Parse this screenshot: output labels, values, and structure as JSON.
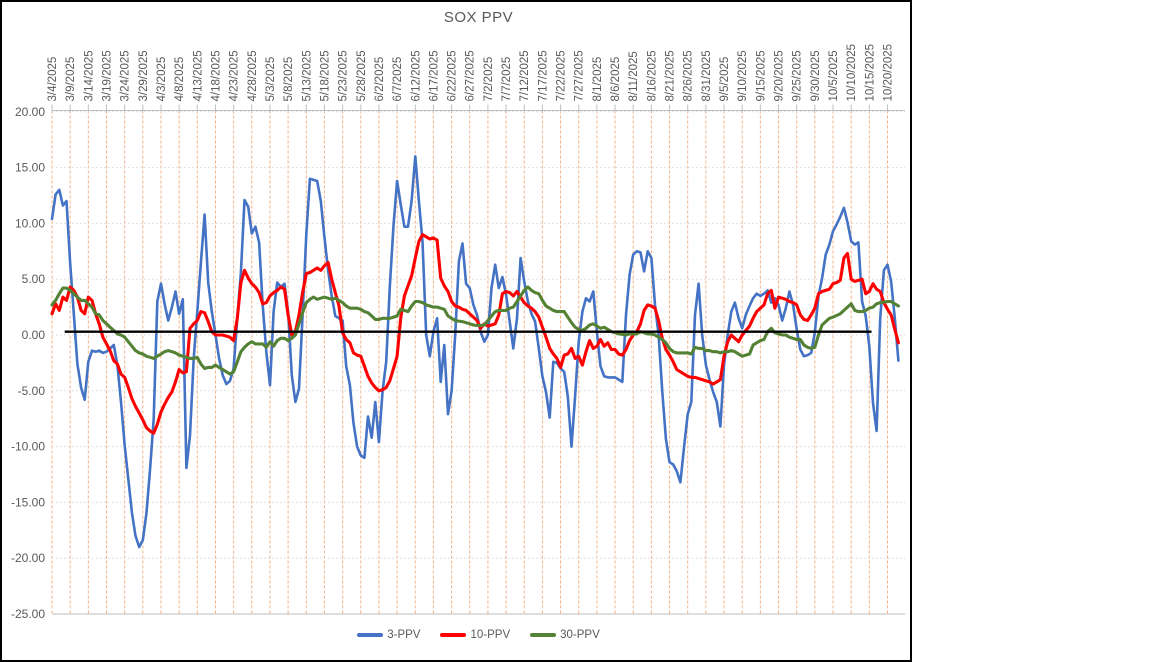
{
  "chart_data": {
    "type": "line",
    "title": "SOX PPV",
    "x_axis": {
      "start_date": "3/4/2025",
      "points_per_tick": 5,
      "tick_labels": [
        "3/4/2025",
        "3/9/2025",
        "3/14/2025",
        "3/19/2025",
        "3/24/2025",
        "3/29/2025",
        "4/3/2025",
        "4/8/2025",
        "4/13/2025",
        "4/18/2025",
        "4/23/2025",
        "4/28/2025",
        "5/3/2025",
        "5/8/2025",
        "5/13/2025",
        "5/18/2025",
        "5/23/2025",
        "5/28/2025",
        "6/2/2025",
        "6/7/2025",
        "6/12/2025",
        "6/17/2025",
        "6/22/2025",
        "6/27/2025",
        "7/2/2025",
        "7/7/2025",
        "7/12/2025",
        "7/17/2025",
        "7/22/2025",
        "7/27/2025",
        "8/1/2025",
        "8/6/2025",
        "8/11/2025",
        "8/16/2025",
        "8/21/2025",
        "8/26/2025",
        "8/31/2025",
        "9/5/2025",
        "9/10/2025",
        "9/15/2025",
        "9/20/2025",
        "9/25/2025",
        "9/30/2025",
        "10/5/2025",
        "10/10/2025",
        "10/15/2025",
        "10/20/2025"
      ]
    },
    "y_axis": {
      "min": -25,
      "max": 20,
      "step": 5,
      "format_decimals": 2,
      "tick_labels": [
        "20.00",
        "15.00",
        "10.00",
        "5.00",
        "0.00",
        "-5.00",
        "-10.00",
        "-15.00",
        "-20.00",
        "-25.00"
      ]
    },
    "grid": {
      "vertical_color": "#F4B183",
      "horizontal_color": "#D9D9D9",
      "axis_line_color": "#BFBFBF",
      "label_color": "#595959",
      "background": "#FFFFFF"
    },
    "annotation_line": {
      "value": 0.3,
      "color": "#000000",
      "start_day_offset": 3.5,
      "end_day_offset": 225.6
    },
    "legend_position": "bottom",
    "series": [
      {
        "name": "3-PPV",
        "color": "#4472C4",
        "values": [
          10.4,
          12.6,
          13,
          11.6,
          12,
          6.4,
          1.9,
          -2.6,
          -4.7,
          -5.8,
          -2.4,
          -1.4,
          -1.5,
          -1.4,
          -1.6,
          -1.5,
          -1.2,
          -0.9,
          -2.7,
          -6,
          -9.9,
          -12.9,
          -15.9,
          -18,
          -19,
          -18.4,
          -16,
          -12,
          -7.5,
          3,
          4.6,
          2.8,
          1.3,
          2.5,
          3.9,
          1.9,
          3.2,
          -11.9,
          -9,
          -2.1,
          2.1,
          6.5,
          10.8,
          4.7,
          2.1,
          0,
          -2.1,
          -3.6,
          -4.4,
          -4.1,
          -3,
          1.5,
          5.6,
          12.1,
          11.5,
          9.1,
          9.7,
          8.3,
          2.7,
          -1.5,
          -4.5,
          2.1,
          4.7,
          4.3,
          4.6,
          2.1,
          -3.6,
          -6,
          -4.8,
          1.8,
          9,
          14,
          13.9,
          13.8,
          12,
          8.8,
          5.8,
          3.5,
          1.7,
          1.5,
          1.3,
          -2.8,
          -4.5,
          -7.9,
          -10,
          -10.8,
          -11,
          -7.3,
          -9.2,
          -6,
          -9.6,
          -5,
          -2.4,
          4.3,
          9.8,
          13.8,
          11.7,
          9.7,
          9.7,
          12,
          16,
          12,
          8.4,
          0,
          -1.9,
          0.3,
          1.5,
          -4.2,
          -0.9,
          -7.1,
          -5,
          0,
          6.6,
          8.2,
          4.6,
          4.2,
          2.7,
          1.8,
          0.3,
          -0.6,
          0,
          4.2,
          6.3,
          4.2,
          5.2,
          3.6,
          1.2,
          -1.2,
          1.5,
          6.9,
          4.8,
          3,
          1.9,
          1.2,
          -1.2,
          -3.7,
          -5.1,
          -7.4,
          -2.4,
          -2.5,
          -3,
          -3.3,
          -5.5,
          -10,
          -5.5,
          -0.6,
          2.1,
          3.3,
          3,
          3.9,
          0.3,
          -2.8,
          -3.7,
          -3.8,
          -3.8,
          -3.8,
          -4,
          -4.2,
          1.8,
          5.4,
          7.2,
          7.5,
          7.4,
          5.7,
          7.5,
          6.9,
          2.7,
          0,
          -5.1,
          -9.3,
          -11.4,
          -11.6,
          -12.2,
          -13.2,
          -10,
          -7.1,
          -6,
          1.8,
          4.6,
          0,
          -2.7,
          -4,
          -5.1,
          -6,
          -8.2,
          -2.7,
          0,
          2.1,
          2.9,
          1.5,
          0.6,
          1.8,
          2.6,
          3.3,
          3.7,
          3.5,
          3.7,
          4,
          2.9,
          3.3,
          2.7,
          1.3,
          2.4,
          3.9,
          2.7,
          0.5,
          -1.3,
          -1.9,
          -1.8,
          -1.6,
          0.2,
          3.5,
          5.1,
          7.2,
          8.1,
          9.3,
          9.9,
          10.6,
          11.4,
          10.1,
          8.4,
          8.1,
          8.3,
          3,
          1.7,
          -1,
          -6.1,
          -8.6,
          1.5,
          5.8,
          6.3,
          4.8,
          1.5,
          -2.3
        ]
      },
      {
        "name": "10-PPV",
        "color": "#FF0000",
        "values": [
          1.9,
          2.8,
          2.2,
          3.4,
          3.1,
          4.3,
          4,
          3.4,
          2.2,
          1.9,
          3.4,
          3.1,
          1.9,
          1,
          -0.2,
          -0.8,
          -1.4,
          -2.3,
          -2.6,
          -3.5,
          -3.8,
          -4.7,
          -5.7,
          -6.4,
          -7,
          -7.6,
          -8.3,
          -8.6,
          -8.8,
          -8,
          -6.9,
          -6.2,
          -5.6,
          -5.1,
          -4.2,
          -3.1,
          -3.4,
          -3.3,
          0.6,
          1,
          1.3,
          2.1,
          2,
          1.2,
          0.3,
          0,
          0,
          0,
          -0.1,
          -0.2,
          -0.5,
          1.5,
          4.7,
          5.8,
          5.1,
          4.6,
          4.3,
          3.8,
          2.8,
          2.9,
          3.5,
          3.8,
          4,
          4.3,
          4.1,
          1.8,
          0,
          0.3,
          1.8,
          3.8,
          5.5,
          5.6,
          5.8,
          6,
          5.8,
          6.2,
          6.5,
          5,
          3.8,
          2.6,
          0.2,
          -0.4,
          -0.7,
          -1.6,
          -1.8,
          -1.9,
          -2.8,
          -3.7,
          -4.3,
          -4.7,
          -5,
          -4.9,
          -4.7,
          -4.1,
          -3,
          -1.9,
          1.5,
          3.5,
          4.4,
          5.3,
          6.9,
          8.4,
          9,
          8.8,
          8.6,
          8.7,
          8.5,
          5.1,
          4.4,
          3.9,
          3,
          2.6,
          2.5,
          2.3,
          2.2,
          1.9,
          1.6,
          1.3,
          0.6,
          1,
          0.8,
          0.9,
          1,
          1.8,
          3.7,
          3.9,
          3.8,
          3.5,
          3.9,
          3.4,
          2.9,
          2.6,
          2.4,
          2.1,
          1.6,
          0.7,
          -0.2,
          -1.2,
          -1.7,
          -2.1,
          -2.9,
          -1.8,
          -1.7,
          -1.2,
          -2.1,
          -1.9,
          -2.7,
          -1.5,
          -0.5,
          -1.2,
          -1,
          -0.4,
          -1,
          -0.7,
          -1.3,
          -1.3,
          -1.7,
          -1.8,
          -1.3,
          -0.5,
          0,
          0.3,
          1,
          2.2,
          2.7,
          2.6,
          2.4,
          1.3,
          -0.3,
          -1.3,
          -1.8,
          -2.4,
          -3.1,
          -3.3,
          -3.5,
          -3.7,
          -3.8,
          -3.8,
          -3.9,
          -4,
          -4.1,
          -4.2,
          -4.4,
          -4.2,
          -4,
          -1.9,
          -0.6,
          0,
          -0.3,
          -0.6,
          0,
          0.4,
          0.8,
          1.5,
          2.1,
          2.4,
          2.7,
          3.7,
          4,
          2.4,
          3.4,
          3.3,
          3.2,
          3,
          2.9,
          2.7,
          1.8,
          1.4,
          1.3,
          1.8,
          2.4,
          3.7,
          3.9,
          4,
          4.1,
          4.6,
          4.7,
          4.9,
          6.9,
          7.3,
          5,
          4.8,
          4.9,
          5,
          3.7,
          3.9,
          4.6,
          4.1,
          3.9,
          2.9,
          2.3,
          1.8,
          0.5,
          -0.7
        ]
      },
      {
        "name": "30-PPV",
        "color": "#548235",
        "values": [
          2.7,
          3.1,
          3.7,
          4.2,
          4.2,
          4,
          3.7,
          3.4,
          3.1,
          3.1,
          2.8,
          2.5,
          1.9,
          1.8,
          1.3,
          1,
          0.7,
          0.4,
          0.1,
          0,
          -0.2,
          -0.6,
          -1,
          -1.4,
          -1.6,
          -1.7,
          -1.9,
          -2,
          -2.1,
          -1.9,
          -1.7,
          -1.5,
          -1.4,
          -1.5,
          -1.6,
          -1.8,
          -1.9,
          -2,
          -2.1,
          -2.1,
          -2,
          -2.6,
          -3,
          -2.9,
          -2.9,
          -2.7,
          -2.9,
          -3.1,
          -3.3,
          -3.5,
          -3.3,
          -2.4,
          -1.5,
          -1.1,
          -0.8,
          -0.6,
          -0.8,
          -0.8,
          -0.8,
          -1.1,
          -0.6,
          -1,
          -0.5,
          -0.3,
          -0.3,
          -0.5,
          -0.3,
          0,
          1,
          2,
          2.9,
          3.2,
          3.4,
          3.2,
          3.3,
          3.4,
          3.3,
          3.2,
          3.3,
          3.1,
          2.9,
          2.6,
          2.4,
          2.4,
          2.4,
          2.3,
          2.1,
          2,
          1.7,
          1.4,
          1.4,
          1.5,
          1.5,
          1.5,
          1.6,
          1.7,
          2.3,
          2.2,
          2.1,
          2.6,
          3,
          3,
          2.9,
          2.7,
          2.6,
          2.5,
          2.5,
          2.4,
          2.3,
          1.7,
          1.5,
          1.3,
          1.25,
          1.2,
          1.1,
          1,
          0.9,
          0.85,
          0.85,
          0.9,
          1.3,
          1.7,
          2.1,
          2.2,
          2.2,
          2.2,
          2.4,
          2.5,
          3,
          3.5,
          4,
          4.3,
          4,
          3.8,
          3.7,
          3.1,
          2.6,
          2.4,
          2.2,
          2.1,
          2.1,
          2.1,
          1.6,
          1.1,
          0.7,
          0.5,
          0.4,
          0.6,
          0.9,
          1,
          0.8,
          0.6,
          0.7,
          0.5,
          0.3,
          0.2,
          0.1,
          0.05,
          0,
          0.1,
          0.1,
          0.1,
          0.3,
          0.2,
          0.1,
          0.1,
          0,
          -0.2,
          -0.4,
          -0.7,
          -1.2,
          -1.5,
          -1.6,
          -1.6,
          -1.6,
          -1.6,
          -1.7,
          -1.1,
          -1.2,
          -1.2,
          -1.4,
          -1.4,
          -1.5,
          -1.5,
          -1.6,
          -1.5,
          -1.5,
          -1.4,
          -1.5,
          -1.7,
          -1.9,
          -1.8,
          -1.7,
          -0.9,
          -0.7,
          -0.5,
          -0.4,
          0.3,
          0.6,
          0.2,
          0.1,
          0,
          0,
          -0.2,
          -0.3,
          -0.4,
          -0.4,
          -0.9,
          -1.1,
          -1.2,
          -1.1,
          0,
          0.9,
          1.2,
          1.5,
          1.6,
          1.75,
          1.9,
          2.2,
          2.5,
          2.8,
          2.2,
          2.1,
          2.1,
          2.2,
          2.4,
          2.5,
          2.8,
          2.9,
          2.95,
          3,
          3,
          2.8,
          2.6
        ]
      }
    ]
  }
}
